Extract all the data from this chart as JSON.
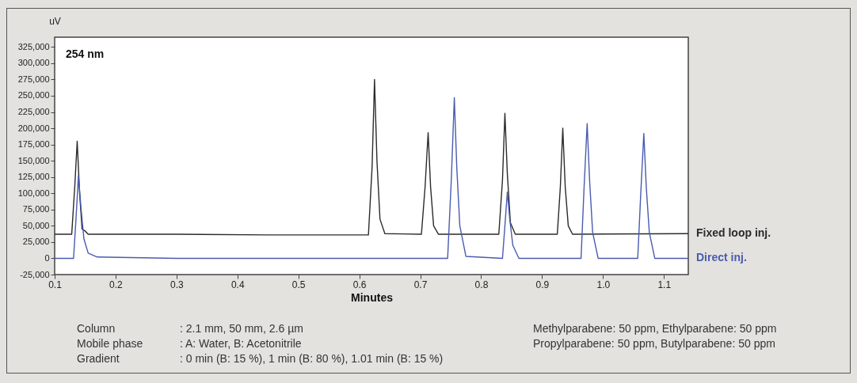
{
  "chart_data": {
    "type": "line",
    "xlabel": "Minutes",
    "ylabel": "uV",
    "xlim": [
      0.1,
      1.14
    ],
    "xticks": [
      0.1,
      0.2,
      0.3,
      0.4,
      0.5,
      0.6,
      0.7,
      0.8,
      0.9,
      {
        "value": 1,
        "label": "1.0"
      },
      1.1
    ],
    "ylim": [
      -25000,
      340000
    ],
    "yticks": [
      {
        "value": -25000,
        "label": "-25,000"
      },
      0,
      {
        "value": 25000,
        "label": "25,000"
      },
      {
        "value": 50000,
        "label": "50,000"
      },
      {
        "value": 75000,
        "label": "75,000"
      },
      {
        "value": 100000,
        "label": "100,000"
      },
      {
        "value": 125000,
        "label": "125,000"
      },
      {
        "value": 150000,
        "label": "150,000"
      },
      {
        "value": 175000,
        "label": "175,000"
      },
      {
        "value": 200000,
        "label": "200,000"
      },
      {
        "value": 225000,
        "label": "225,000"
      },
      {
        "value": 250000,
        "label": "250,000"
      },
      {
        "value": 275000,
        "label": "275,000"
      },
      {
        "value": 300000,
        "label": "300,000"
      },
      {
        "value": 325000,
        "label": "325,000"
      }
    ],
    "grid": false,
    "legend": false,
    "series": [
      {
        "name": "Fixed loop inj.",
        "color": "#2b2b2b",
        "x": [
          0.1,
          0.128,
          0.133,
          0.137,
          0.141,
          0.145,
          0.15,
          0.155,
          0.3,
          0.45,
          0.615,
          0.621,
          0.625,
          0.629,
          0.634,
          0.642,
          0.702,
          0.708,
          0.713,
          0.717,
          0.722,
          0.73,
          0.829,
          0.835,
          0.839,
          0.843,
          0.848,
          0.856,
          0.925,
          0.93,
          0.934,
          0.938,
          0.943,
          0.95,
          1.14
        ],
        "values": [
          37000,
          37000,
          110000,
          180000,
          100000,
          45000,
          42000,
          37000,
          37000,
          36000,
          36000,
          140000,
          275000,
          150000,
          60000,
          38000,
          37000,
          110000,
          193000,
          110000,
          50000,
          37000,
          37000,
          120000,
          223000,
          130000,
          55000,
          37000,
          37000,
          110000,
          200000,
          110000,
          50000,
          37000,
          38000
        ]
      },
      {
        "name": "Direct inj.",
        "color": "#4a5bb0",
        "x": [
          0.1,
          0.131,
          0.135,
          0.139,
          0.143,
          0.148,
          0.155,
          0.17,
          0.3,
          0.745,
          0.751,
          0.756,
          0.76,
          0.765,
          0.775,
          0.835,
          0.839,
          0.843,
          0.847,
          0.852,
          0.862,
          0.964,
          0.969,
          0.974,
          0.978,
          0.983,
          0.992,
          1.057,
          1.062,
          1.067,
          1.071,
          1.076,
          1.085,
          1.14
        ],
        "values": [
          0,
          0,
          60000,
          127000,
          80000,
          30000,
          8000,
          2000,
          0,
          0,
          120000,
          247000,
          140000,
          50000,
          3000,
          0,
          50000,
          102000,
          60000,
          20000,
          0,
          0,
          110000,
          207000,
          120000,
          40000,
          0,
          0,
          100000,
          192000,
          110000,
          40000,
          0,
          0
        ]
      }
    ],
    "annotations": [
      "254 nm",
      "Column",
      ": 2.1 mm, 50 mm, 2.6 µm",
      "Mobile phase",
      ": A: Water, B: Acetonitrile",
      "Gradient",
      ": 0 min (B: 15 %), 1 min (B: 80 %), 1.01 min (B: 15 %)",
      "Methylparabene: 50 ppm, Ethylparabene: 50 ppm",
      "Propylparabene: 50 ppm, Butylparabene: 50 ppm"
    ]
  }
}
